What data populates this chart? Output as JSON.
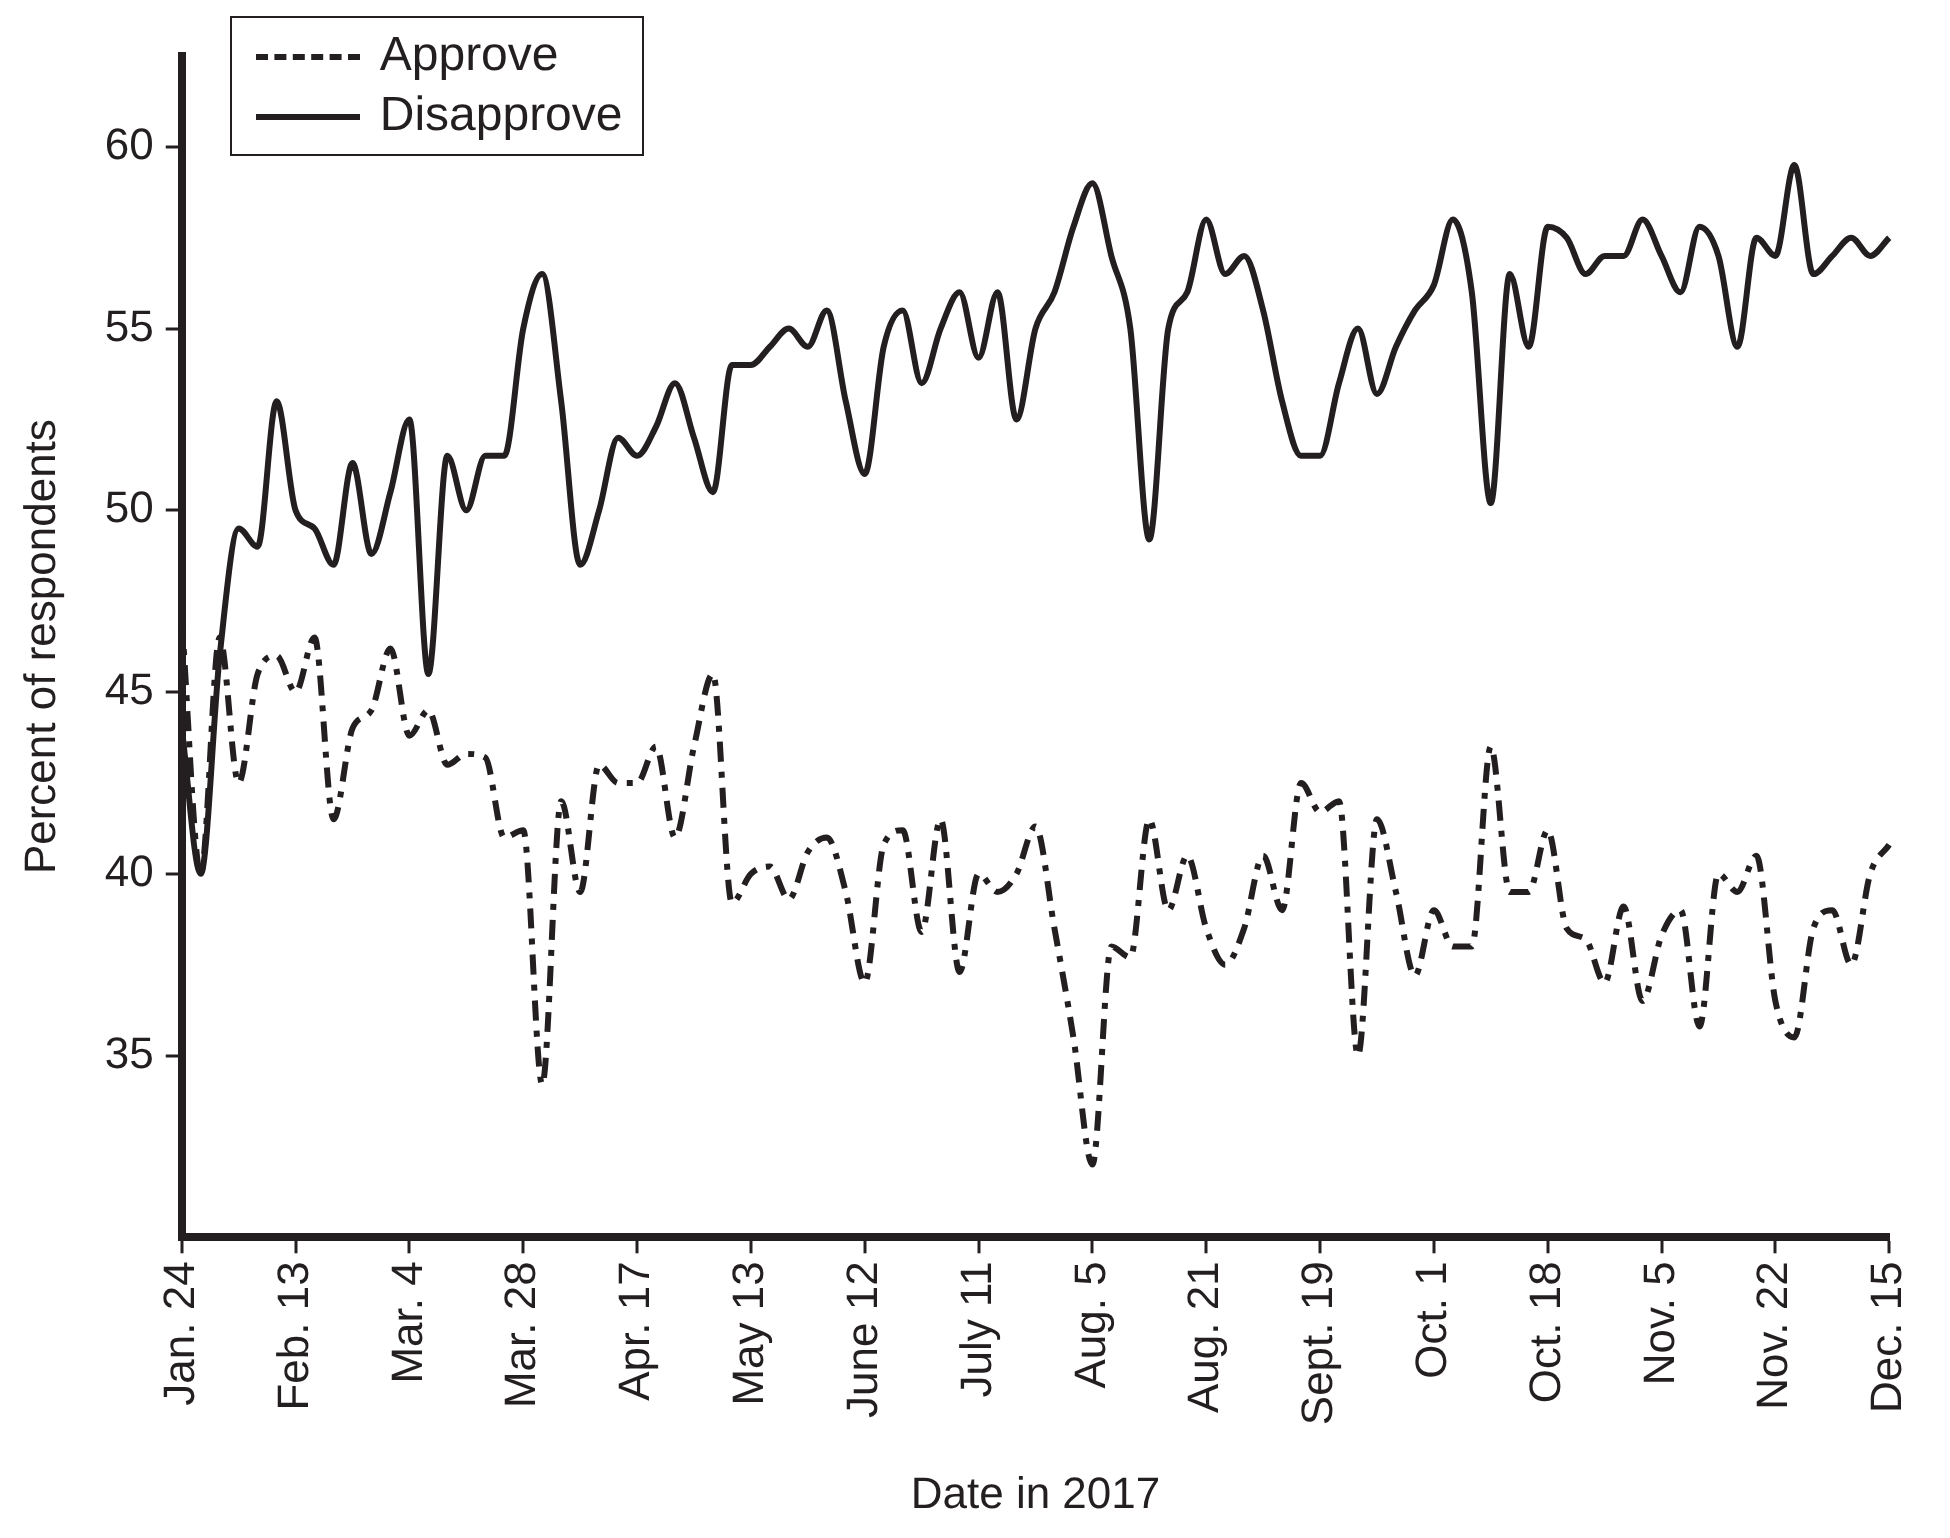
{
  "chart_data": {
    "type": "line",
    "xlabel": "Date in 2017",
    "ylabel": "Percent of respondents",
    "categories": [
      "Jan. 24",
      null,
      null,
      null,
      null,
      null,
      "Feb. 13",
      null,
      null,
      null,
      null,
      null,
      "Mar. 4",
      null,
      null,
      null,
      null,
      null,
      "Mar. 28",
      null,
      null,
      null,
      null,
      null,
      "Apr. 17",
      null,
      null,
      null,
      null,
      null,
      "May 13",
      null,
      null,
      null,
      null,
      null,
      "June 12",
      null,
      null,
      null,
      null,
      null,
      "July 11",
      null,
      null,
      null,
      null,
      null,
      "Aug. 5",
      null,
      null,
      null,
      null,
      null,
      "Aug. 21",
      null,
      null,
      null,
      null,
      null,
      "Sept. 19",
      null,
      null,
      null,
      null,
      null,
      "Oct. 1",
      null,
      null,
      null,
      null,
      null,
      "Oct. 18",
      null,
      null,
      null,
      null,
      null,
      "Nov. 5",
      null,
      null,
      null,
      null,
      null,
      "Nov. 22",
      null,
      null,
      null,
      null,
      null,
      "Dec. 15"
    ],
    "series": [
      {
        "name": "Approve",
        "color": "#231f20",
        "line_style": "dashed",
        "values": [
          47,
          40,
          46.5,
          42.5,
          45.5,
          46,
          45,
          46.5,
          41.5,
          44,
          44.5,
          46.2,
          43.8,
          44.5,
          43,
          43.3,
          43.2,
          41,
          41.2,
          34.2,
          42,
          39.5,
          43,
          42.5,
          42.5,
          43.5,
          41,
          43.5,
          45.5,
          39.2,
          40,
          40.2,
          39.3,
          40.6,
          41,
          39.5,
          37,
          40.8,
          41.2,
          38.4,
          41.5,
          37.3,
          40,
          39.5,
          40,
          41.3,
          38.5,
          35.5,
          32,
          38,
          37.7,
          41.5,
          39,
          40.5,
          38.5,
          37.5,
          38.5,
          40.5,
          39,
          42.5,
          41.7,
          42,
          35,
          41.5,
          39.5,
          37.2,
          39,
          38,
          38,
          43.5,
          39.5,
          39.5,
          41.2,
          38.5,
          38.2,
          37,
          39.1,
          36.5,
          38.3,
          39,
          35.8,
          40,
          39.5,
          40.5,
          36.5,
          35.5,
          38.5,
          39,
          37.5,
          40,
          40.8
        ]
      },
      {
        "name": "Disapprove",
        "color": "#231f20",
        "line_style": "solid",
        "values": [
          44,
          40,
          46,
          49.5,
          49,
          53,
          50,
          49.5,
          48.5,
          51.3,
          48.8,
          50.5,
          52.5,
          45.5,
          51.5,
          50,
          51.5,
          51.5,
          55,
          56.5,
          53,
          48.5,
          50,
          52,
          51.5,
          52.3,
          53.5,
          52,
          50.5,
          54,
          54,
          54.5,
          55,
          54.5,
          55.5,
          53,
          51,
          54.5,
          55.5,
          53.5,
          55,
          56,
          54.2,
          56,
          52.5,
          55,
          56,
          57.8,
          59,
          57,
          55,
          49.2,
          55,
          56,
          58,
          56.5,
          57,
          55.5,
          53,
          51.5,
          51.5,
          53.5,
          55,
          53.2,
          54.5,
          55.5,
          56.2,
          58,
          56,
          50.2,
          56.5,
          54.5,
          57.8,
          57.5,
          56.5,
          57,
          57,
          58,
          57,
          56,
          57.8,
          57,
          54.5,
          57.5,
          57,
          59.5,
          56.5,
          57,
          57.5,
          57,
          57.5
        ]
      }
    ],
    "ylim": [
      30,
      62.5
    ],
    "yticks": [
      35,
      40,
      45,
      50,
      55,
      60
    ],
    "grid": false,
    "legend": "top left",
    "marker": "none"
  }
}
